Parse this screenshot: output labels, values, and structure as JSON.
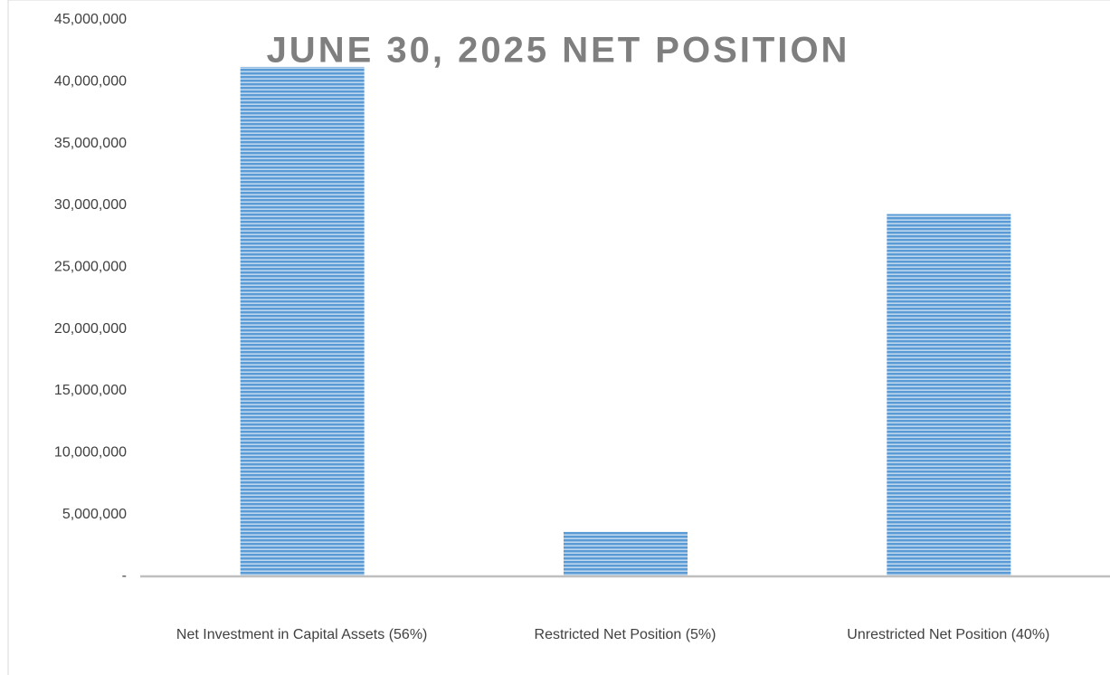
{
  "chart_data": {
    "type": "bar",
    "title": "JUNE 30, 2025 NET POSITION",
    "categories": [
      "Net Investment in Capital Assets (56%)",
      "Restricted Net Position  (5%)",
      "Unrestricted Net Position  (40%)"
    ],
    "values": [
      41200000,
      3600000,
      29300000
    ],
    "color": "#5b9bd5",
    "ylim": [
      0,
      45000000
    ],
    "yticks": [
      {
        "value": 0,
        "label": "-"
      },
      {
        "value": 5000000,
        "label": "5,000,000"
      },
      {
        "value": 10000000,
        "label": "10,000,000"
      },
      {
        "value": 15000000,
        "label": "15,000,000"
      },
      {
        "value": 20000000,
        "label": "20,000,000"
      },
      {
        "value": 25000000,
        "label": "25,000,000"
      },
      {
        "value": 30000000,
        "label": "30,000,000"
      },
      {
        "value": 35000000,
        "label": "35,000,000"
      },
      {
        "value": 40000000,
        "label": "40,000,000"
      },
      {
        "value": 45000000,
        "label": "45,000,000"
      }
    ],
    "grid": false
  }
}
